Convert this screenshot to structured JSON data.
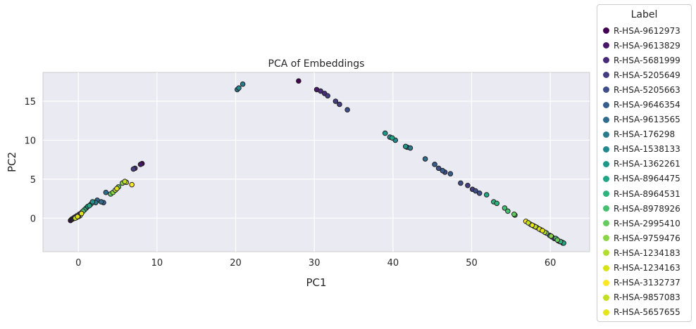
{
  "chart_data": {
    "type": "scatter",
    "title": "PCA of Embeddings",
    "xlabel": "PC1",
    "ylabel": "PC2",
    "xlim": [
      -4.5,
      65
    ],
    "ylim": [
      -4.3,
      18.7
    ],
    "xticks": [
      0,
      10,
      20,
      30,
      40,
      50,
      60
    ],
    "yticks": [
      0,
      5,
      10,
      15
    ],
    "grid": true,
    "background": "#eaeaf2",
    "legend": {
      "title": "Label",
      "placement": "outside-right"
    },
    "series": [
      {
        "name": "R-HSA-9612973",
        "color": "#440154",
        "points": [
          [
            -1.0,
            -0.3
          ],
          [
            -0.9,
            -0.2
          ],
          [
            -0.8,
            -0.1
          ],
          [
            8.1,
            7.0
          ],
          [
            28.0,
            17.6
          ],
          [
            61.2,
            -3.0
          ],
          [
            61.6,
            -3.2
          ]
        ]
      },
      {
        "name": "R-HSA-9613829",
        "color": "#481769",
        "points": [
          [
            -0.7,
            -0.1
          ],
          [
            -0.6,
            0.0
          ],
          [
            7.9,
            6.9
          ],
          [
            30.3,
            16.5
          ],
          [
            60.8,
            -2.7
          ],
          [
            61.0,
            -2.9
          ]
        ]
      },
      {
        "name": "R-HSA-5681999",
        "color": "#472a7a",
        "points": [
          [
            -0.5,
            0.1
          ],
          [
            7.2,
            6.4
          ],
          [
            30.8,
            16.3
          ],
          [
            31.3,
            16.0
          ],
          [
            60.2,
            -2.4
          ],
          [
            60.5,
            -2.6
          ]
        ]
      },
      {
        "name": "R-HSA-5205649",
        "color": "#433d84",
        "points": [
          [
            -0.3,
            0.2
          ],
          [
            7.0,
            6.3
          ],
          [
            31.7,
            15.7
          ],
          [
            32.7,
            15.0
          ],
          [
            33.2,
            14.6
          ],
          [
            49.5,
            4.2
          ],
          [
            50.1,
            3.7
          ]
        ]
      },
      {
        "name": "R-HSA-5205663",
        "color": "#3d4e8a",
        "points": [
          [
            -0.2,
            0.3
          ],
          [
            34.2,
            13.9
          ],
          [
            45.8,
            6.4
          ],
          [
            46.6,
            5.9
          ],
          [
            48.6,
            4.5
          ],
          [
            50.5,
            3.5
          ],
          [
            51.0,
            3.2
          ]
        ]
      },
      {
        "name": "R-HSA-9646354",
        "color": "#355e8d",
        "points": [
          [
            0.1,
            0.5
          ],
          [
            3.2,
            2.0
          ],
          [
            45.3,
            6.9
          ],
          [
            46.3,
            6.1
          ],
          [
            47.3,
            5.7
          ],
          [
            59.9,
            -2.2
          ]
        ]
      },
      {
        "name": "R-HSA-9613565",
        "color": "#2e6d8e",
        "points": [
          [
            0.3,
            0.6
          ],
          [
            2.4,
            2.3
          ],
          [
            2.9,
            2.1
          ],
          [
            3.5,
            3.3
          ],
          [
            44.1,
            7.6
          ]
        ]
      },
      {
        "name": "R-HSA-176298",
        "color": "#297b8e",
        "points": [
          [
            0.5,
            0.8
          ],
          [
            2.2,
            2.0
          ],
          [
            20.2,
            16.5
          ],
          [
            20.9,
            17.2
          ],
          [
            41.8,
            9.1
          ],
          [
            42.2,
            9.0
          ]
        ]
      },
      {
        "name": "R-HSA-1538133",
        "color": "#23898e",
        "points": [
          [
            1.0,
            1.3
          ],
          [
            1.6,
            1.8
          ],
          [
            20.4,
            16.7
          ],
          [
            39.6,
            10.4
          ],
          [
            40.3,
            10.0
          ]
        ]
      },
      {
        "name": "R-HSA-1362261",
        "color": "#1f978b",
        "points": [
          [
            1.2,
            1.5
          ],
          [
            1.8,
            2.1
          ],
          [
            39.0,
            10.9
          ],
          [
            41.6,
            9.2
          ],
          [
            61.5,
            -3.1
          ]
        ]
      },
      {
        "name": "R-HSA-8964475",
        "color": "#21a585",
        "points": [
          [
            1.4,
            1.6
          ],
          [
            39.9,
            10.3
          ],
          [
            51.9,
            3.0
          ],
          [
            61.7,
            -3.2
          ]
        ]
      },
      {
        "name": "R-HSA-8964531",
        "color": "#2eb37c",
        "points": [
          [
            0.8,
            1.1
          ],
          [
            52.8,
            2.1
          ],
          [
            53.2,
            1.9
          ],
          [
            61.3,
            -3.0
          ]
        ]
      },
      {
        "name": "R-HSA-8978926",
        "color": "#46c06f",
        "points": [
          [
            0.6,
            0.9
          ],
          [
            54.2,
            1.3
          ],
          [
            54.6,
            0.9
          ],
          [
            55.5,
            0.4
          ],
          [
            60.7,
            -2.6
          ]
        ]
      },
      {
        "name": "R-HSA-2995410",
        "color": "#65cb5e",
        "points": [
          [
            4.1,
            3.1
          ],
          [
            5.1,
            4.0
          ],
          [
            55.4,
            0.5
          ],
          [
            60.9,
            -2.8
          ]
        ]
      },
      {
        "name": "R-HSA-9759476",
        "color": "#89d548",
        "points": [
          [
            4.4,
            3.3
          ],
          [
            5.6,
            4.5
          ],
          [
            59.5,
            -1.9
          ],
          [
            60.1,
            -2.3
          ]
        ]
      },
      {
        "name": "R-HSA-1234183",
        "color": "#b0dd2f",
        "points": [
          [
            0.2,
            0.3
          ],
          [
            4.7,
            3.6
          ],
          [
            58.8,
            -1.5
          ],
          [
            59.3,
            -1.8
          ]
        ]
      },
      {
        "name": "R-HSA-1234163",
        "color": "#d8e219",
        "points": [
          [
            0.0,
            0.2
          ],
          [
            6.1,
            4.6
          ],
          [
            58.3,
            -1.2
          ],
          [
            58.6,
            -1.4
          ]
        ]
      },
      {
        "name": "R-HSA-3132737",
        "color": "#fde725",
        "points": [
          [
            -0.2,
            0.1
          ],
          [
            6.8,
            4.3
          ],
          [
            56.9,
            -0.4
          ],
          [
            57.5,
            -0.8
          ],
          [
            57.9,
            -1.0
          ]
        ]
      },
      {
        "name": "R-HSA-9857083",
        "color": "#c2df23",
        "points": [
          [
            -0.4,
            0.0
          ],
          [
            5.9,
            4.7
          ],
          [
            57.2,
            -0.6
          ],
          [
            58.1,
            -1.1
          ]
        ]
      },
      {
        "name": "R-HSA-5657655",
        "color": "#e5e419",
        "points": [
          [
            -0.1,
            0.2
          ],
          [
            0.4,
            0.6
          ],
          [
            4.9,
            3.8
          ],
          [
            57.7,
            -0.9
          ],
          [
            59.0,
            -1.6
          ]
        ]
      }
    ]
  }
}
